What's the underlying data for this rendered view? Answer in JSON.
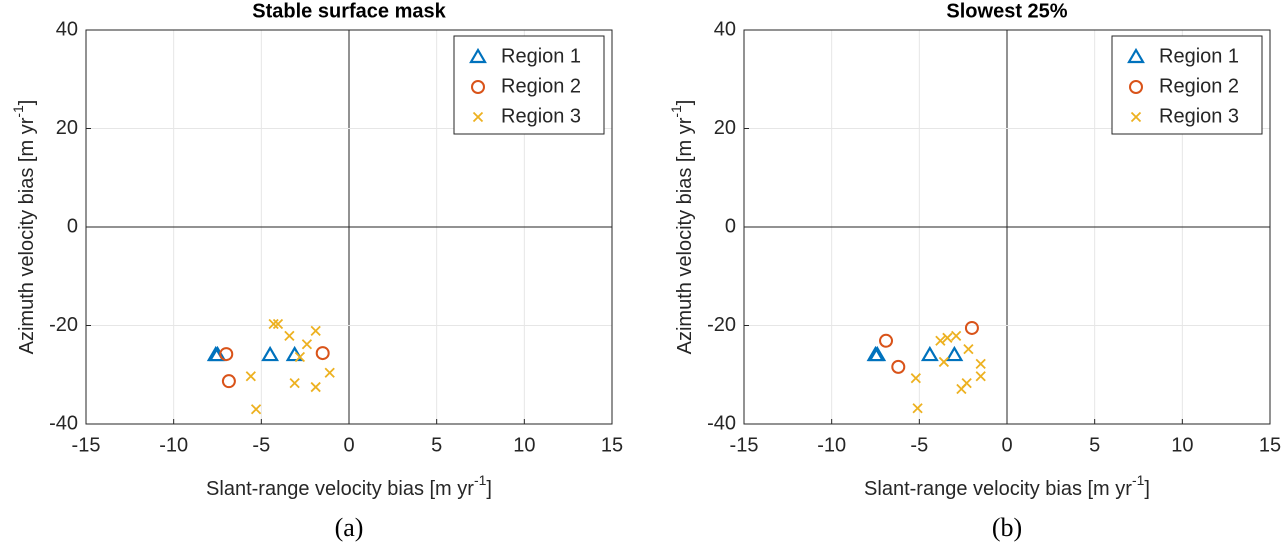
{
  "chart_data": [
    {
      "type": "scatter",
      "title": "Stable surface mask",
      "caption": "(a)",
      "xlabel_parts": [
        "Slant-range velocity bias [m yr",
        "-1",
        "]"
      ],
      "ylabel_parts": [
        "Azimuth velocity bias [m yr",
        "-1",
        "]"
      ],
      "xlim": [
        -15,
        15
      ],
      "ylim": [
        -40,
        40
      ],
      "xticks": [
        -15,
        -10,
        -5,
        0,
        5,
        10,
        15
      ],
      "yticks": [
        -40,
        -20,
        0,
        20,
        40
      ],
      "grid": true,
      "legend": "top-right",
      "series": [
        {
          "name": "Region 1",
          "color": "#0072BD",
          "marker": "triangle",
          "x": [
            -7.6,
            -7.5,
            -4.5,
            -3.1
          ],
          "values": [
            -26,
            -26,
            -26,
            -26
          ]
        },
        {
          "name": "Region 2",
          "color": "#D95319",
          "marker": "circle",
          "x": [
            -7.0,
            -6.85,
            -1.5
          ],
          "values": [
            -25.8,
            -31.3,
            -25.6
          ]
        },
        {
          "name": "Region 3",
          "color": "#EDB120",
          "marker": "x",
          "x": [
            -4.3,
            -4.05,
            -3.4,
            -1.9,
            -2.4,
            -2.8,
            -5.6,
            -3.1,
            -1.9,
            -1.1,
            -5.3
          ],
          "values": [
            -19.7,
            -19.7,
            -22.1,
            -21.1,
            -23.8,
            -26.4,
            -30.3,
            -31.7,
            -32.5,
            -29.6,
            -37.0
          ]
        }
      ]
    },
    {
      "type": "scatter",
      "title": "Slowest 25%",
      "caption": "(b)",
      "xlabel_parts": [
        "Slant-range velocity bias [m yr",
        "-1",
        "]"
      ],
      "ylabel_parts": [
        "Azimuth velocity bias [m yr",
        "-1",
        "]"
      ],
      "xlim": [
        -15,
        15
      ],
      "ylim": [
        -40,
        40
      ],
      "xticks": [
        -15,
        -10,
        -5,
        0,
        5,
        10,
        15
      ],
      "yticks": [
        -40,
        -20,
        0,
        20,
        40
      ],
      "grid": true,
      "legend": "top-right",
      "series": [
        {
          "name": "Region 1",
          "color": "#0072BD",
          "marker": "triangle",
          "x": [
            -7.5,
            -7.4,
            -4.4,
            -3.0
          ],
          "values": [
            -26,
            -26,
            -26,
            -26
          ]
        },
        {
          "name": "Region 2",
          "color": "#D95319",
          "marker": "circle",
          "x": [
            -6.9,
            -6.2,
            -2.0
          ],
          "values": [
            -23.1,
            -28.4,
            -20.5
          ]
        },
        {
          "name": "Region 3",
          "color": "#EDB120",
          "marker": "x",
          "x": [
            -3.8,
            -3.4,
            -2.9,
            -3.6,
            -2.2,
            -1.5,
            -1.5,
            -2.3,
            -2.6,
            -5.2,
            -5.1
          ],
          "values": [
            -23.1,
            -22.5,
            -22.1,
            -27.4,
            -24.8,
            -27.8,
            -30.3,
            -31.7,
            -32.9,
            -30.7,
            -36.8
          ]
        }
      ]
    }
  ]
}
